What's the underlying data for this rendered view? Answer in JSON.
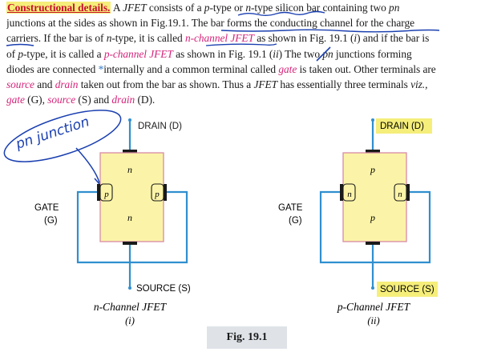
{
  "paragraph": {
    "line1": {
      "heading": "Constructional details.",
      "t1": " A ",
      "jfet": "JFET",
      "t2": " consists of a ",
      "ptype": "p",
      "t3": "-type or ",
      "ntype": "n",
      "t4": "-type silicon bar containing two ",
      "pn": "pn"
    },
    "line2": {
      "t1": "junctions at the sides as shown in Fig.19.1.  The bar forms the conducting channel for the charge"
    },
    "line3": {
      "t1": "carriers.  If the bar is of ",
      "n": "n",
      "t2": "-type, it is called ",
      "nch": "n-channel JFET",
      "t3": " as shown in Fig. 19.1 (",
      "i": "i",
      "t4": ") and if the bar is"
    },
    "line4": {
      "t0": "of ",
      "p": "p",
      "t1": "-type, it is called a ",
      "pch": "p-channel JFET",
      "t2": " as shown in Fig. 19.1 (",
      "ii": "ii",
      "t3": ") The two ",
      "pn": "pn",
      "t4": " junctions forming"
    },
    "line5": {
      "t1": "diodes are connected ",
      "star": "*",
      "t2": "internally and a common terminal called ",
      "gate": "gate",
      "t3": " is taken out.  Other terminals are"
    },
    "line6": {
      "source": "source",
      "t1": " and ",
      "drain": "drain",
      "t2": " taken out from the bar as shown.  Thus a ",
      "jfet": "JFET",
      "t3": " has essentially three terminals ",
      "viz": "viz.,"
    },
    "line7": {
      "gate": "gate",
      "t1": " (G), ",
      "source": "source",
      "t2": " (S) and ",
      "drain": "drain",
      "t3": " (D)."
    }
  },
  "annotation": {
    "handwritten": "pn junction"
  },
  "figure": {
    "caption": "Fig. 19.1",
    "left": {
      "drain_label": "DRAIN (D)",
      "source_label": "SOURCE (S)",
      "gate_label": "GATE",
      "gate_abbr": "(G)",
      "channel_top": "n",
      "channel_bottom": "n",
      "junction_left": "p",
      "junction_right": "p",
      "title": "n-Channel  JFET",
      "subtitle": "(i)"
    },
    "right": {
      "drain_label": "DRAIN (D)",
      "source_label": "SOURCE (S)",
      "gate_label": "GATE",
      "gate_abbr": "(G)",
      "channel_top": "p",
      "channel_bottom": "p",
      "junction_left": "n",
      "junction_right": "n",
      "title": "p-Channel  JFET",
      "subtitle": "(ii)"
    }
  },
  "colors": {
    "highlight": "#f5ee7a",
    "heading_red": "#c8102e",
    "magenta": "#d4247a",
    "bar_fill": "#fbf4a8",
    "bar_stroke": "#d88aa6",
    "wire": "#2f8fcf",
    "ink": "#1a3fb0",
    "caption_bg": "#dfe3e8"
  }
}
